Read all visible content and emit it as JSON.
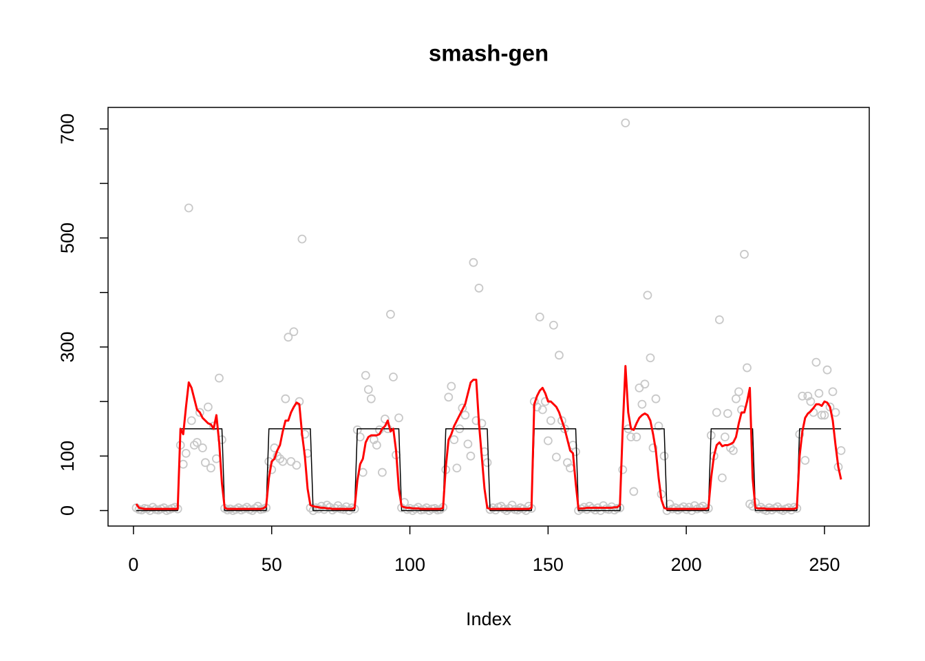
{
  "chart_data": {
    "type": "line",
    "title": "smash-gen",
    "x_label": "Index",
    "x": [
      1,
      2,
      3,
      4,
      5,
      6,
      7,
      8,
      9,
      10,
      11,
      12,
      13,
      14,
      15,
      16,
      17,
      18,
      19,
      20,
      21,
      22,
      23,
      24,
      25,
      26,
      27,
      28,
      29,
      30,
      31,
      32,
      33,
      34,
      35,
      36,
      37,
      38,
      39,
      40,
      41,
      42,
      43,
      44,
      45,
      46,
      47,
      48,
      49,
      50,
      51,
      52,
      53,
      54,
      55,
      56,
      57,
      58,
      59,
      60,
      61,
      62,
      63,
      64,
      65,
      66,
      67,
      68,
      69,
      70,
      71,
      72,
      73,
      74,
      75,
      76,
      77,
      78,
      79,
      80,
      81,
      82,
      83,
      84,
      85,
      86,
      87,
      88,
      89,
      90,
      91,
      92,
      93,
      94,
      95,
      96,
      97,
      98,
      99,
      100,
      101,
      102,
      103,
      104,
      105,
      106,
      107,
      108,
      109,
      110,
      111,
      112,
      113,
      114,
      115,
      116,
      117,
      118,
      119,
      120,
      121,
      122,
      123,
      124,
      125,
      126,
      127,
      128,
      129,
      130,
      131,
      132,
      133,
      134,
      135,
      136,
      137,
      138,
      139,
      140,
      141,
      142,
      143,
      144,
      145,
      146,
      147,
      148,
      149,
      150,
      151,
      152,
      153,
      154,
      155,
      156,
      157,
      158,
      159,
      160,
      161,
      162,
      163,
      164,
      165,
      166,
      167,
      168,
      169,
      170,
      171,
      172,
      173,
      174,
      175,
      176,
      177,
      178,
      179,
      180,
      181,
      182,
      183,
      184,
      185,
      186,
      187,
      188,
      189,
      190,
      191,
      192,
      193,
      194,
      195,
      196,
      197,
      198,
      199,
      200,
      201,
      202,
      203,
      204,
      205,
      206,
      207,
      208,
      209,
      210,
      211,
      212,
      213,
      214,
      215,
      216,
      217,
      218,
      219,
      220,
      221,
      222,
      223,
      224,
      225,
      226,
      227,
      228,
      229,
      230,
      231,
      232,
      233,
      234,
      235,
      236,
      237,
      238,
      239,
      240,
      241,
      242,
      243,
      244,
      245,
      246,
      247,
      248,
      249,
      250,
      251,
      252,
      253,
      254,
      255,
      256
    ],
    "series": [
      {
        "style": "points",
        "color": "#c8c8c8",
        "values": [
          5,
          2,
          1,
          4,
          3,
          0,
          6,
          2,
          1,
          3,
          5,
          0,
          2,
          4,
          6,
          3,
          120,
          85,
          105,
          555,
          165,
          120,
          125,
          180,
          115,
          88,
          190,
          78,
          155,
          95,
          243,
          130,
          4,
          1,
          3,
          0,
          2,
          5,
          1,
          3,
          6,
          2,
          0,
          4,
          8,
          2,
          3,
          5,
          90,
          75,
          115,
          100,
          95,
          90,
          205,
          318,
          90,
          328,
          83,
          200,
          498,
          140,
          105,
          5,
          0,
          5,
          3,
          8,
          2,
          10,
          6,
          1,
          4,
          9,
          3,
          2,
          7,
          0,
          5,
          3,
          148,
          135,
          70,
          248,
          222,
          205,
          130,
          120,
          148,
          70,
          168,
          150,
          360,
          245,
          102,
          170,
          5,
          15,
          2,
          4,
          0,
          3,
          6,
          1,
          2,
          5,
          0,
          3,
          4,
          1,
          2,
          6,
          75,
          208,
          228,
          130,
          78,
          150,
          188,
          175,
          122,
          100,
          455,
          165,
          408,
          160,
          108,
          88,
          2,
          5,
          1,
          6,
          8,
          3,
          0,
          4,
          10,
          2,
          1,
          5,
          3,
          0,
          8,
          4,
          200,
          190,
          355,
          185,
          200,
          128,
          165,
          340,
          98,
          285,
          165,
          150,
          88,
          78,
          120,
          108,
          0,
          3,
          6,
          2,
          8,
          4,
          1,
          5,
          0,
          9,
          3,
          2,
          7,
          1,
          4,
          5,
          75,
          711,
          150,
          135,
          35,
          135,
          225,
          195,
          232,
          395,
          280,
          115,
          205,
          155,
          30,
          100,
          0,
          12,
          3,
          5,
          1,
          4,
          7,
          2,
          6,
          0,
          9,
          3,
          5,
          8,
          2,
          4,
          138,
          100,
          180,
          350,
          60,
          135,
          178,
          115,
          110,
          205,
          218,
          185,
          470,
          262,
          12,
          8,
          15,
          3,
          6,
          2,
          0,
          5,
          1,
          4,
          7,
          2,
          0,
          3,
          5,
          1,
          6,
          4,
          140,
          210,
          92,
          210,
          200,
          180,
          272,
          215,
          175,
          175,
          258,
          190,
          218,
          180,
          80,
          110
        ]
      },
      {
        "style": "line",
        "color": "#000000",
        "values": [
          0,
          0,
          0,
          0,
          0,
          0,
          0,
          0,
          0,
          0,
          0,
          0,
          0,
          0,
          0,
          0,
          150,
          150,
          150,
          150,
          150,
          150,
          150,
          150,
          150,
          150,
          150,
          150,
          150,
          150,
          150,
          150,
          0,
          0,
          0,
          0,
          0,
          0,
          0,
          0,
          0,
          0,
          0,
          0,
          0,
          0,
          0,
          0,
          150,
          150,
          150,
          150,
          150,
          150,
          150,
          150,
          150,
          150,
          150,
          150,
          150,
          150,
          150,
          150,
          0,
          0,
          0,
          0,
          0,
          0,
          0,
          0,
          0,
          0,
          0,
          0,
          0,
          0,
          0,
          0,
          150,
          150,
          150,
          150,
          150,
          150,
          150,
          150,
          150,
          150,
          150,
          150,
          150,
          150,
          150,
          150,
          0,
          0,
          0,
          0,
          0,
          0,
          0,
          0,
          0,
          0,
          0,
          0,
          0,
          0,
          0,
          0,
          150,
          150,
          150,
          150,
          150,
          150,
          150,
          150,
          150,
          150,
          150,
          150,
          150,
          150,
          150,
          150,
          0,
          0,
          0,
          0,
          0,
          0,
          0,
          0,
          0,
          0,
          0,
          0,
          0,
          0,
          0,
          0,
          150,
          150,
          150,
          150,
          150,
          150,
          150,
          150,
          150,
          150,
          150,
          150,
          150,
          150,
          150,
          150,
          0,
          0,
          0,
          0,
          0,
          0,
          0,
          0,
          0,
          0,
          0,
          0,
          0,
          0,
          0,
          0,
          150,
          150,
          150,
          150,
          150,
          150,
          150,
          150,
          150,
          150,
          150,
          150,
          150,
          150,
          150,
          150,
          0,
          0,
          0,
          0,
          0,
          0,
          0,
          0,
          0,
          0,
          0,
          0,
          0,
          0,
          0,
          0,
          150,
          150,
          150,
          150,
          150,
          150,
          150,
          150,
          150,
          150,
          150,
          150,
          150,
          150,
          150,
          150,
          0,
          0,
          0,
          0,
          0,
          0,
          0,
          0,
          0,
          0,
          0,
          0,
          0,
          0,
          0,
          0,
          150,
          150,
          150,
          150,
          150,
          150,
          150,
          150,
          150,
          150,
          150,
          150,
          150,
          150,
          150,
          150
        ]
      },
      {
        "style": "line",
        "color": "#ff0000",
        "width": 3,
        "values": [
          12,
          5,
          4,
          3,
          3,
          3,
          3,
          3,
          3,
          3,
          3,
          3,
          3,
          3,
          3,
          3,
          150,
          140,
          190,
          235,
          225,
          205,
          185,
          180,
          170,
          165,
          160,
          158,
          150,
          175,
          125,
          50,
          5,
          3,
          3,
          3,
          3,
          3,
          3,
          3,
          3,
          3,
          3,
          3,
          3,
          3,
          4,
          8,
          60,
          90,
          95,
          110,
          120,
          145,
          165,
          165,
          180,
          190,
          198,
          195,
          140,
          100,
          40,
          10,
          8,
          7,
          6,
          5,
          5,
          4,
          4,
          3,
          3,
          3,
          3,
          3,
          3,
          3,
          3,
          5,
          55,
          85,
          95,
          125,
          135,
          138,
          138,
          138,
          140,
          150,
          155,
          165,
          145,
          150,
          110,
          40,
          8,
          6,
          5,
          5,
          4,
          4,
          4,
          3,
          3,
          3,
          3,
          3,
          3,
          3,
          3,
          5,
          80,
          130,
          140,
          155,
          165,
          175,
          185,
          195,
          215,
          235,
          240,
          240,
          160,
          100,
          40,
          5,
          3,
          3,
          3,
          3,
          3,
          3,
          3,
          3,
          3,
          3,
          3,
          3,
          3,
          3,
          3,
          5,
          195,
          210,
          220,
          225,
          215,
          200,
          200,
          195,
          190,
          180,
          165,
          150,
          130,
          110,
          105,
          50,
          3,
          4,
          4,
          5,
          5,
          5,
          5,
          5,
          5,
          5,
          5,
          5,
          5,
          6,
          6,
          10,
          150,
          265,
          180,
          150,
          148,
          160,
          170,
          175,
          178,
          175,
          165,
          140,
          110,
          60,
          20,
          5,
          3,
          3,
          3,
          3,
          3,
          3,
          3,
          3,
          3,
          3,
          3,
          3,
          3,
          3,
          3,
          5,
          60,
          100,
          120,
          125,
          118,
          120,
          120,
          122,
          125,
          135,
          160,
          180,
          180,
          200,
          225,
          60,
          5,
          4,
          4,
          4,
          3,
          3,
          3,
          3,
          3,
          3,
          3,
          3,
          3,
          3,
          3,
          5,
          100,
          145,
          170,
          178,
          182,
          188,
          195,
          195,
          192,
          200,
          198,
          190,
          165,
          120,
          80,
          57
        ]
      }
    ],
    "xlim": [
      -9.2,
      266.2
    ],
    "xticks": [
      0,
      50,
      100,
      150,
      200,
      250
    ],
    "ylim": [
      -28.4,
      739.4
    ],
    "yticks": [
      0,
      100,
      300,
      500,
      700
    ],
    "minor_yticks": [
      200,
      400,
      600
    ]
  }
}
